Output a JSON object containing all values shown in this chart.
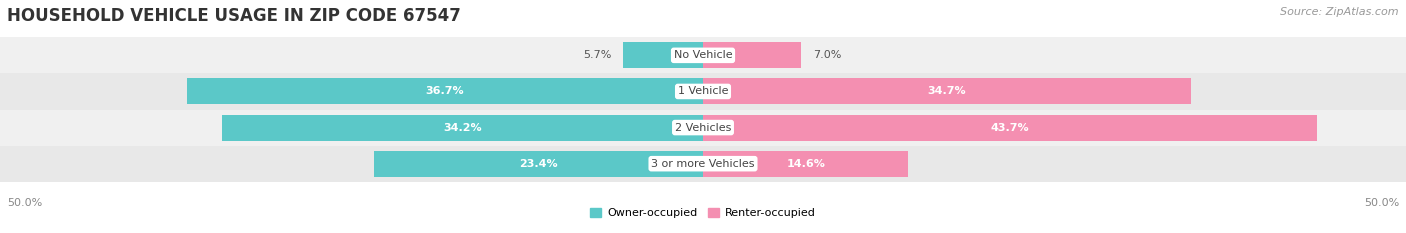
{
  "title": "HOUSEHOLD VEHICLE USAGE IN ZIP CODE 67547",
  "source": "Source: ZipAtlas.com",
  "categories": [
    "No Vehicle",
    "1 Vehicle",
    "2 Vehicles",
    "3 or more Vehicles"
  ],
  "owner_values": [
    5.7,
    36.7,
    34.2,
    23.4
  ],
  "renter_values": [
    7.0,
    34.7,
    43.7,
    14.6
  ],
  "owner_color": "#5BC8C8",
  "renter_color": "#F48FB1",
  "owner_label": "Owner-occupied",
  "renter_label": "Renter-occupied",
  "x_min": -50.0,
  "x_max": 50.0,
  "x_tick_labels": [
    "50.0%",
    "50.0%"
  ],
  "title_fontsize": 12,
  "source_fontsize": 8,
  "label_fontsize": 8,
  "tick_fontsize": 8,
  "legend_fontsize": 8,
  "bar_height": 0.72,
  "row_bg_colors": [
    "#F0F0F0",
    "#E8E8E8",
    "#F0F0F0",
    "#E8E8E8"
  ],
  "center_label_color": "#444444",
  "owner_text_color_inside": "#FFFFFF",
  "owner_text_color_outside": "#555555",
  "renter_text_color_inside": "#FFFFFF",
  "renter_text_color_outside": "#555555",
  "threshold_inside": 8.0
}
